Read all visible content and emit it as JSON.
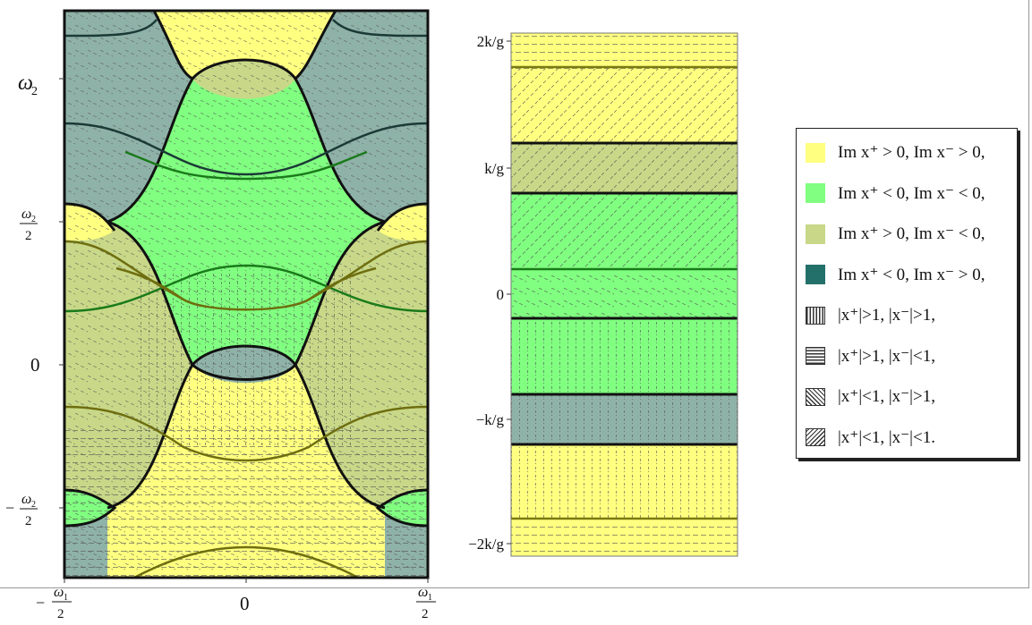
{
  "left_plot": {
    "y_ticks": [
      "ω₂",
      "ω₂/2",
      "0",
      "−ω₂/2"
    ],
    "x_ticks": [
      "−ω₁/2",
      "0",
      "ω₁/2"
    ]
  },
  "right_plot": {
    "y_ticks": [
      "2k/g",
      "k/g",
      "0",
      "−k/g",
      "−2k/g"
    ]
  },
  "legend": {
    "items": [
      {
        "swatch": "#ffff80",
        "label": "Im x⁺ > 0, Im x⁻ > 0,"
      },
      {
        "swatch": "#80ff80",
        "label": "Im x⁺ < 0, Im x⁻ < 0,"
      },
      {
        "swatch": "#c8d888",
        "label": "Im x⁺ > 0, Im x⁻ < 0,"
      },
      {
        "swatch": "#23706a",
        "label": "Im x⁺ < 0, Im x⁻ > 0,"
      },
      {
        "pattern": "vertical",
        "label": "|x⁺|>1, |x⁻|>1,"
      },
      {
        "pattern": "horizontal",
        "label": "|x⁺|>1, |x⁻|<1,"
      },
      {
        "pattern": "diag-down",
        "label": "|x⁺|<1, |x⁻|>1,"
      },
      {
        "pattern": "diag-up",
        "label": "|x⁺|<1, |x⁻|<1."
      }
    ]
  },
  "colors": {
    "yellow": "#ffff80",
    "green": "#80ff80",
    "olive": "#c8d888",
    "teal": "#8fb2a8",
    "dark_line": "#1b3a36",
    "green_line": "#1a7a1a",
    "olive_line": "#7a7a10"
  }
}
